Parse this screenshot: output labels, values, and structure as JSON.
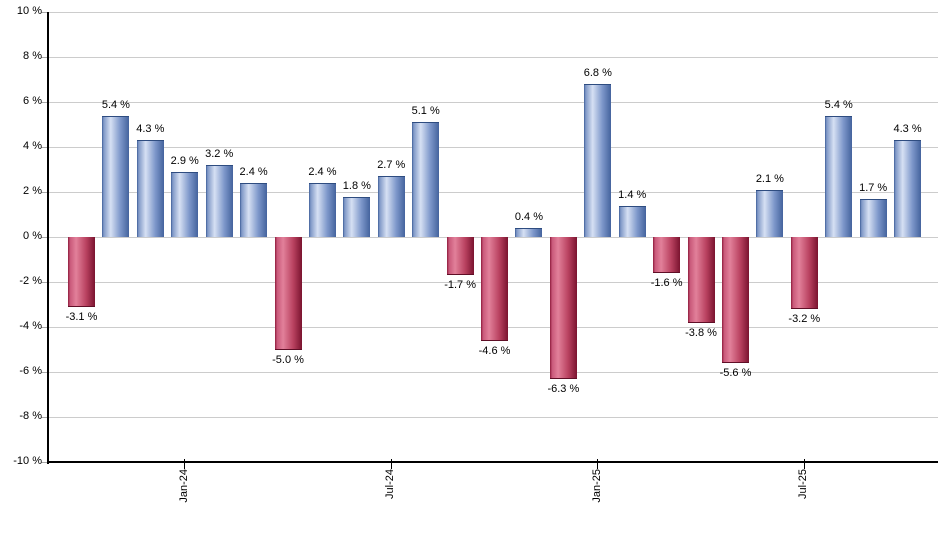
{
  "chart_data": {
    "type": "bar",
    "title": "",
    "xlabel": "",
    "ylabel": "",
    "values": [
      -3.1,
      5.4,
      4.3,
      2.9,
      3.2,
      2.4,
      -5.0,
      2.4,
      1.8,
      2.7,
      5.1,
      -1.7,
      -4.6,
      0.4,
      -6.3,
      6.8,
      1.4,
      -1.6,
      -3.8,
      -5.6,
      2.1,
      -3.2,
      5.4,
      1.7,
      4.3
    ],
    "bar_labels": [
      "-3.1 %",
      "5.4 %",
      "4.3 %",
      "2.9 %",
      "3.2 %",
      "2.4 %",
      "-5.0 %",
      "2.4 %",
      "1.8 %",
      "2.7 %",
      "5.1 %",
      "-1.7 %",
      "-4.6 %",
      "0.4 %",
      "-6.3 %",
      "6.8 %",
      "1.4 %",
      "-1.6 %",
      "-3.8 %",
      "-5.6 %",
      "2.1 %",
      "-3.2 %",
      "5.4 %",
      "1.7 %",
      "4.3 %"
    ],
    "y_tick_labels": [
      "10 %",
      "8 %",
      "6 %",
      "4 %",
      "2 %",
      "0 %",
      "-2 %",
      "-4 %",
      "-6 %",
      "-8 %",
      "-10 %"
    ],
    "x_ticks": [
      {
        "label": "Jan-24",
        "bar_index": 3
      },
      {
        "label": "Jul-24",
        "bar_index": 9
      },
      {
        "label": "Jan-25",
        "bar_index": 15
      },
      {
        "label": "Jul-25",
        "bar_index": 21
      }
    ],
    "ylim": [
      -10,
      10
    ],
    "y_step": 2,
    "grid": true,
    "legend_position": "none",
    "colors": {
      "positive_bar_edge": "#3d5d97",
      "positive_bar_light": "#d6e0f3",
      "positive_bar_mid": "#7d97ca",
      "positive_bar_right": "#44639d",
      "negative_bar_edge": "#8e1b3b",
      "negative_bar_light": "#e2809a",
      "negative_bar_mid": "#b8415f",
      "negative_bar_right": "#7a132f",
      "gridline": "#cccccc",
      "axis": "#000000",
      "label_text": "#000000",
      "background": "#ffffff"
    }
  }
}
